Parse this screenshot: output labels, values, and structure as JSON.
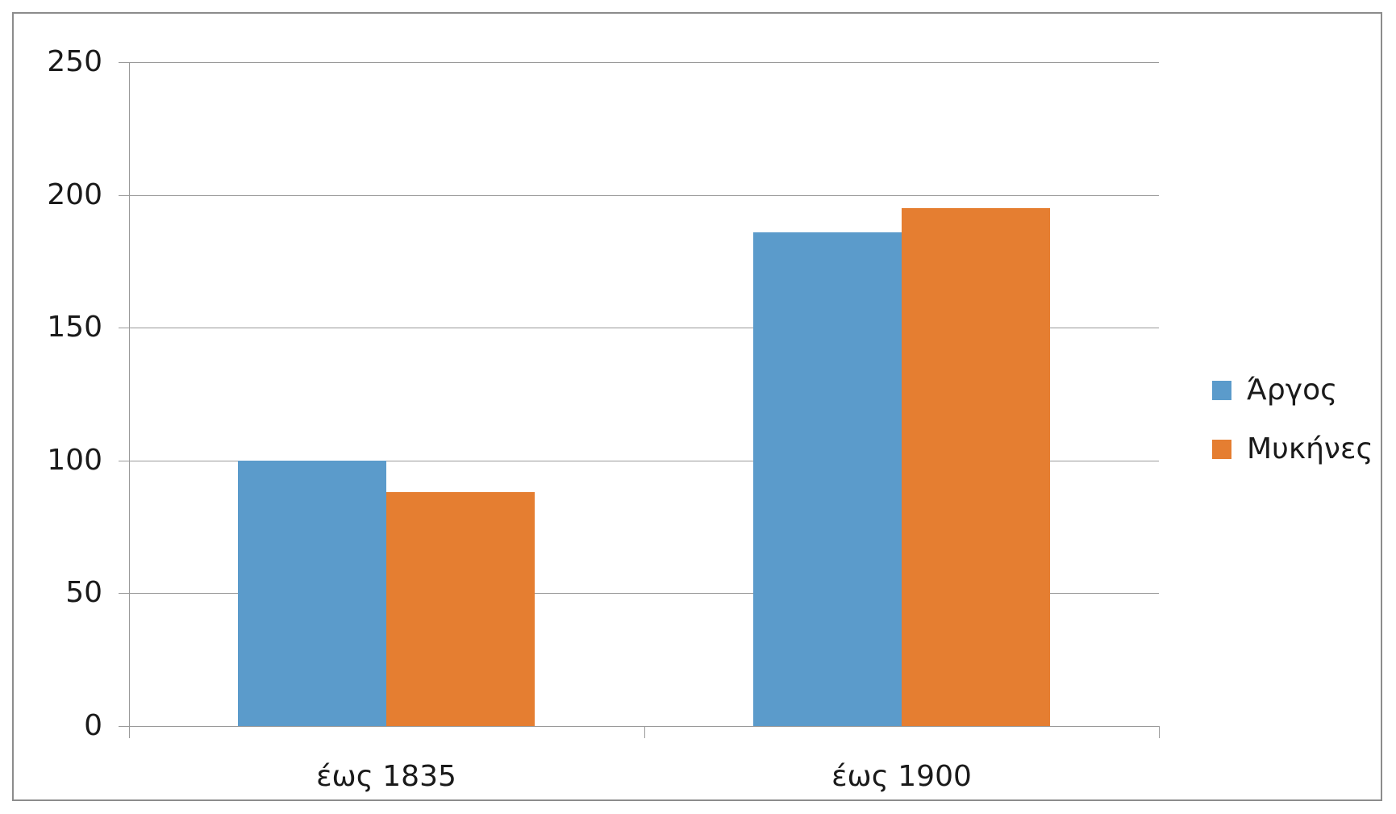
{
  "chart_data": {
    "type": "bar",
    "categories": [
      "έως 1835",
      "έως 1900"
    ],
    "series": [
      {
        "name": "Άργος",
        "color": "#5B9BCB",
        "values": [
          100,
          186
        ]
      },
      {
        "name": "Μυκήνες",
        "color": "#E57E31",
        "values": [
          88,
          195
        ]
      }
    ],
    "title": "",
    "xlabel": "",
    "ylabel": "",
    "ylim": [
      0,
      250
    ],
    "yticks": [
      0,
      50,
      100,
      150,
      200,
      250
    ],
    "grid": "horizontal-only",
    "legend_position": "right-middle"
  },
  "legend": {
    "items": [
      {
        "label": "Άργος",
        "color": "#5B9BCB",
        "icon": "legend-swatch-square"
      },
      {
        "label": "Μυκήνες",
        "color": "#E57E31",
        "icon": "legend-swatch-square"
      }
    ]
  },
  "colors": {
    "background": "#FFFFFF",
    "frame_border": "#8C8C8C",
    "gridline": "#9A9A9A",
    "axis": "#9A9A9A",
    "text": "#1A1A1A",
    "series_1": "#5B9BCB",
    "series_2": "#E57E31"
  }
}
